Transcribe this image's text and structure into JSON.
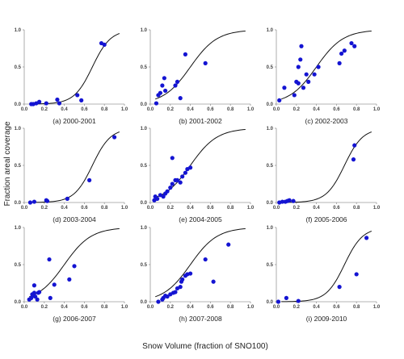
{
  "figure": {
    "ylabel": "Fraction areal coverage",
    "xlabel": "Snow Volume (fraction of SNO100)"
  },
  "chart_data": [
    {
      "type": "scatter",
      "title": "(a) 2000-2001",
      "xlim": [
        0,
        1
      ],
      "ylim": [
        0,
        1
      ],
      "xticks": [
        "0.0",
        "0.2",
        "0.4",
        "0.6",
        "0.8",
        "1.0"
      ],
      "yticks": [
        "0.0",
        "0.5",
        "1.0"
      ],
      "points": [
        [
          0.07,
          0.0
        ],
        [
          0.09,
          0.0
        ],
        [
          0.12,
          0.01
        ],
        [
          0.15,
          0.03
        ],
        [
          0.22,
          0.01
        ],
        [
          0.33,
          0.06
        ],
        [
          0.35,
          0.01
        ],
        [
          0.53,
          0.12
        ],
        [
          0.57,
          0.05
        ],
        [
          0.77,
          0.82
        ],
        [
          0.8,
          0.8
        ]
      ],
      "curve": {
        "k": 11,
        "x0": 0.68
      }
    },
    {
      "type": "scatter",
      "title": "(b) 2001-2002",
      "xlim": [
        0,
        1
      ],
      "ylim": [
        0,
        1
      ],
      "xticks": [
        "0.0",
        "0.2",
        "0.4",
        "0.6",
        "0.8",
        "1.0"
      ],
      "yticks": [
        "0.0",
        "0.5",
        "1.0"
      ],
      "points": [
        [
          0.06,
          0.01
        ],
        [
          0.08,
          0.12
        ],
        [
          0.1,
          0.15
        ],
        [
          0.12,
          0.25
        ],
        [
          0.14,
          0.35
        ],
        [
          0.15,
          0.18
        ],
        [
          0.25,
          0.25
        ],
        [
          0.27,
          0.3
        ],
        [
          0.3,
          0.08
        ],
        [
          0.35,
          0.67
        ],
        [
          0.55,
          0.55
        ]
      ],
      "curve": {
        "k": 7.5,
        "x0": 0.4
      }
    },
    {
      "type": "scatter",
      "title": "(c) 2002-2003",
      "xlim": [
        0,
        1
      ],
      "ylim": [
        0,
        1
      ],
      "xticks": [
        "0.0",
        "0.2",
        "0.4",
        "0.6",
        "0.8",
        "1.0"
      ],
      "yticks": [
        "0.0",
        "0.5",
        "1.0"
      ],
      "points": [
        [
          0.03,
          0.05
        ],
        [
          0.08,
          0.22
        ],
        [
          0.18,
          0.12
        ],
        [
          0.2,
          0.3
        ],
        [
          0.22,
          0.28
        ],
        [
          0.22,
          0.5
        ],
        [
          0.24,
          0.6
        ],
        [
          0.25,
          0.78
        ],
        [
          0.27,
          0.22
        ],
        [
          0.3,
          0.4
        ],
        [
          0.32,
          0.3
        ],
        [
          0.38,
          0.4
        ],
        [
          0.42,
          0.5
        ],
        [
          0.63,
          0.55
        ],
        [
          0.65,
          0.68
        ],
        [
          0.68,
          0.72
        ],
        [
          0.75,
          0.82
        ],
        [
          0.78,
          0.78
        ]
      ],
      "curve": {
        "k": 7.5,
        "x0": 0.4
      }
    },
    {
      "type": "scatter",
      "title": "(d) 2003-2004",
      "xlim": [
        0,
        1
      ],
      "ylim": [
        0,
        1
      ],
      "xticks": [
        "0.0",
        "0.2",
        "0.4",
        "0.6",
        "0.8",
        "1.0"
      ],
      "yticks": [
        "0.0",
        "0.5",
        "1.0"
      ],
      "points": [
        [
          0.06,
          0.0
        ],
        [
          0.1,
          0.01
        ],
        [
          0.22,
          0.03
        ],
        [
          0.23,
          0.02
        ],
        [
          0.43,
          0.05
        ],
        [
          0.65,
          0.3
        ],
        [
          0.9,
          0.88
        ]
      ],
      "curve": {
        "k": 11,
        "x0": 0.68
      }
    },
    {
      "type": "scatter",
      "title": "(e) 2004-2005",
      "xlim": [
        0,
        1
      ],
      "ylim": [
        0,
        1
      ],
      "xticks": [
        "0.0",
        "0.2",
        "0.4",
        "0.6",
        "0.8",
        "1.0"
      ],
      "yticks": [
        "0.0",
        "0.5",
        "1.0"
      ],
      "points": [
        [
          0.04,
          0.03
        ],
        [
          0.05,
          0.08
        ],
        [
          0.07,
          0.05
        ],
        [
          0.1,
          0.1
        ],
        [
          0.13,
          0.08
        ],
        [
          0.15,
          0.12
        ],
        [
          0.17,
          0.15
        ],
        [
          0.2,
          0.2
        ],
        [
          0.22,
          0.25
        ],
        [
          0.22,
          0.6
        ],
        [
          0.25,
          0.3
        ],
        [
          0.27,
          0.3
        ],
        [
          0.3,
          0.27
        ],
        [
          0.32,
          0.35
        ],
        [
          0.35,
          0.4
        ],
        [
          0.37,
          0.45
        ],
        [
          0.4,
          0.47
        ]
      ],
      "curve": {
        "k": 7.5,
        "x0": 0.4
      }
    },
    {
      "type": "scatter",
      "title": "(f) 2005-2006",
      "xlim": [
        0,
        1
      ],
      "ylim": [
        0,
        1
      ],
      "xticks": [
        "0.0",
        "0.2",
        "0.4",
        "0.6",
        "0.8",
        "1.0"
      ],
      "yticks": [
        "0.0",
        "0.5",
        "1.0"
      ],
      "points": [
        [
          0.03,
          0.0
        ],
        [
          0.06,
          0.01
        ],
        [
          0.09,
          0.01
        ],
        [
          0.11,
          0.02
        ],
        [
          0.13,
          0.03
        ],
        [
          0.17,
          0.02
        ],
        [
          0.77,
          0.58
        ],
        [
          0.78,
          0.77
        ]
      ],
      "curve": {
        "k": 11,
        "x0": 0.68
      }
    },
    {
      "type": "scatter",
      "title": "(g) 2006-2007",
      "xlim": [
        0,
        1
      ],
      "ylim": [
        0,
        1
      ],
      "xticks": [
        "0.0",
        "0.2",
        "0.4",
        "0.6",
        "0.8",
        "1.0"
      ],
      "yticks": [
        "0.0",
        "0.5",
        "1.0"
      ],
      "points": [
        [
          0.05,
          0.03
        ],
        [
          0.07,
          0.05
        ],
        [
          0.08,
          0.1
        ],
        [
          0.09,
          0.08
        ],
        [
          0.1,
          0.12
        ],
        [
          0.1,
          0.22
        ],
        [
          0.11,
          0.07
        ],
        [
          0.13,
          0.03
        ],
        [
          0.14,
          0.12
        ],
        [
          0.15,
          0.13
        ],
        [
          0.25,
          0.57
        ],
        [
          0.26,
          0.05
        ],
        [
          0.3,
          0.23
        ],
        [
          0.45,
          0.3
        ],
        [
          0.5,
          0.48
        ]
      ],
      "curve": {
        "k": 7.5,
        "x0": 0.4
      }
    },
    {
      "type": "scatter",
      "title": "(h) 2007-2008",
      "xlim": [
        0,
        1
      ],
      "ylim": [
        0,
        1
      ],
      "xticks": [
        "0.0",
        "0.2",
        "0.4",
        "0.6",
        "0.8",
        "1.0"
      ],
      "yticks": [
        "0.0",
        "0.5",
        "1.0"
      ],
      "points": [
        [
          0.08,
          0.0
        ],
        [
          0.12,
          0.03
        ],
        [
          0.13,
          0.05
        ],
        [
          0.15,
          0.08
        ],
        [
          0.17,
          0.07
        ],
        [
          0.2,
          0.1
        ],
        [
          0.23,
          0.12
        ],
        [
          0.25,
          0.13
        ],
        [
          0.27,
          0.18
        ],
        [
          0.3,
          0.2
        ],
        [
          0.31,
          0.27
        ],
        [
          0.32,
          0.3
        ],
        [
          0.35,
          0.35
        ],
        [
          0.37,
          0.37
        ],
        [
          0.4,
          0.38
        ],
        [
          0.55,
          0.57
        ],
        [
          0.63,
          0.27
        ],
        [
          0.78,
          0.77
        ]
      ],
      "curve": {
        "k": 7.5,
        "x0": 0.4
      }
    },
    {
      "type": "scatter",
      "title": "(i) 2009-2010",
      "xlim": [
        0,
        1
      ],
      "ylim": [
        0,
        1
      ],
      "xticks": [
        "0.0",
        "0.2",
        "0.4",
        "0.6",
        "0.8",
        "1.0"
      ],
      "yticks": [
        "0.0",
        "0.5",
        "1.0"
      ],
      "points": [
        [
          0.02,
          0.0
        ],
        [
          0.1,
          0.05
        ],
        [
          0.22,
          0.01
        ],
        [
          0.63,
          0.2
        ],
        [
          0.8,
          0.37
        ],
        [
          0.9,
          0.86
        ]
      ],
      "curve": {
        "k": 11,
        "x0": 0.68
      }
    }
  ],
  "colors": {
    "points": "#1414d2",
    "curve": "#111111",
    "axis": "#9a9a9a"
  }
}
